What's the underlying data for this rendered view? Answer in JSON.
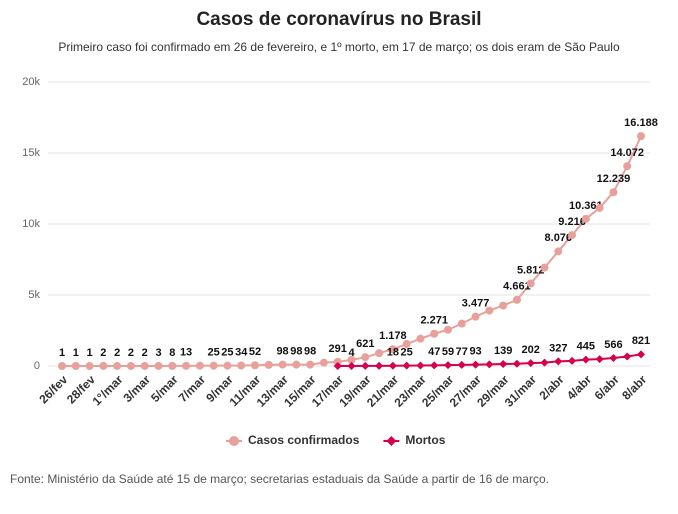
{
  "chart_data": {
    "type": "line",
    "title": "Casos de coronavírus no Brasil",
    "subtitle": "Primeiro caso foi confirmado em 26 de fevereiro, e 1º morto, em 17 de março; os dois eram de São Paulo",
    "source": "Fonte: Ministério da Saúde até 15 de março; secretarias estaduais da Saúde a partir de 16 de março.",
    "categories": [
      "26/fev",
      null,
      "28/fev",
      null,
      "1°/mar",
      null,
      "3/mar",
      null,
      "5/mar",
      null,
      "7/mar",
      null,
      "9/mar",
      null,
      "11/mar",
      null,
      "13/mar",
      null,
      "15/mar",
      null,
      "17/mar",
      null,
      "19/mar",
      null,
      "21/mar",
      null,
      "23/mar",
      null,
      "25/mar",
      null,
      "27/mar",
      null,
      "29/mar",
      null,
      "31/mar",
      null,
      "2/abr",
      null,
      "4/abr",
      null,
      "6/abr",
      null,
      "8/abr"
    ],
    "series": [
      {
        "name": "Casos confirmados",
        "color": "#e8a09a",
        "values": [
          1,
          1,
          1,
          2,
          2,
          2,
          2,
          3,
          8,
          13,
          19,
          25,
          25,
          34,
          52,
          77,
          98,
          98,
          98,
          234,
          291,
          428,
          621,
          904,
          1178,
          1546,
          1924,
          2271,
          2554,
          2985,
          3477,
          3904,
          4256,
          4661,
          5812,
          6931,
          8076,
          9216,
          10361,
          11130,
          12239,
          14072,
          16188
        ],
        "value_labels": [
          "1",
          "1",
          "1",
          "2",
          "2",
          "2",
          "2",
          "3",
          "8",
          "13",
          null,
          "25",
          "25",
          "34",
          "52",
          null,
          "98",
          "98",
          "98",
          null,
          "291",
          null,
          "621",
          null,
          "1.178",
          null,
          null,
          "2.271",
          null,
          null,
          "3.477",
          null,
          null,
          "4.661",
          "5.812",
          null,
          "8.076",
          "9.216",
          "10.361",
          null,
          "12.239",
          "14.072",
          "16.188"
        ]
      },
      {
        "name": "Mortos",
        "color": "#d6004c",
        "values": [
          null,
          null,
          null,
          null,
          null,
          null,
          null,
          null,
          null,
          null,
          null,
          null,
          null,
          null,
          null,
          null,
          null,
          null,
          null,
          null,
          1,
          4,
          6,
          11,
          18,
          25,
          34,
          47,
          59,
          77,
          93,
          114,
          139,
          159,
          202,
          240,
          327,
          359,
          445,
          486,
          566,
          667,
          821
        ],
        "value_labels": [
          null,
          null,
          null,
          null,
          null,
          null,
          null,
          null,
          null,
          null,
          null,
          null,
          null,
          null,
          null,
          null,
          null,
          null,
          null,
          null,
          null,
          "4",
          null,
          null,
          "18",
          "25",
          null,
          "47",
          "59",
          "77",
          "93",
          null,
          "139",
          null,
          "202",
          null,
          "327",
          null,
          "445",
          null,
          "566",
          null,
          "821"
        ]
      }
    ],
    "ylim": [
      0,
      20000
    ],
    "yticks": [
      0,
      {
        "value": 5000,
        "label": "5k"
      },
      {
        "value": 10000,
        "label": "10k"
      },
      {
        "value": 15000,
        "label": "15k"
      },
      {
        "value": 20000,
        "label": "20k"
      }
    ],
    "grid": true,
    "legend": "bottom"
  }
}
